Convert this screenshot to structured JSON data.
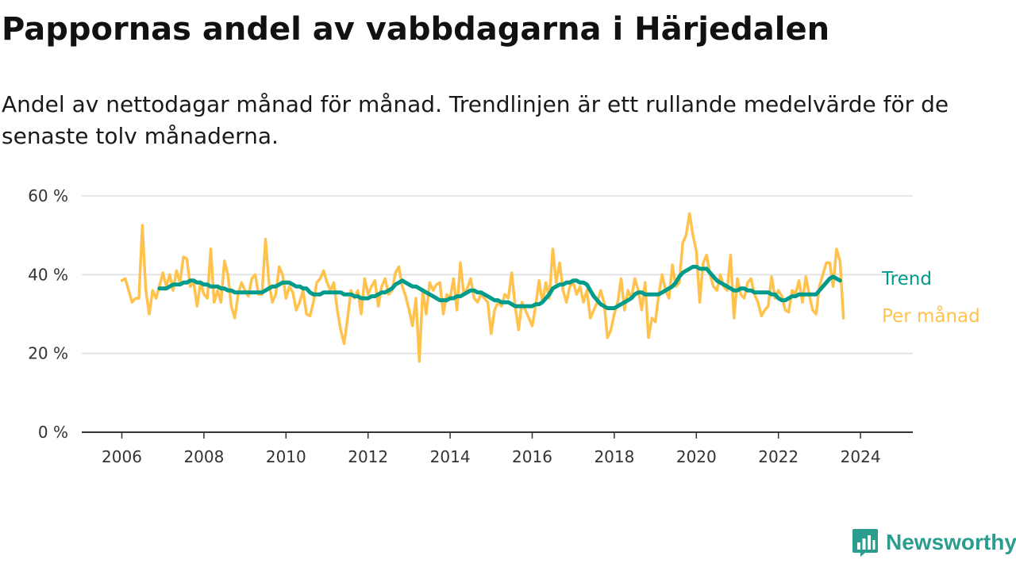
{
  "header": {
    "title": "Pappornas andel av vabbdagarna i Härjedalen",
    "subtitle": "Andel av nettodagar månad för månad. Trendlinjen är ett rullande medelvärde för de senaste tolv månaderna."
  },
  "brand": {
    "name": "Newsworthy"
  },
  "colors": {
    "monthly": "#ffc24d",
    "trend": "#009b8a",
    "grid": "#dddddd",
    "axis": "#333333",
    "brand": "#2a9d8f"
  },
  "chart_data": {
    "type": "line",
    "title": "Pappornas andel av vabbdagarna i Härjedalen",
    "xlabel": "",
    "ylabel": "",
    "x_start": "2006-01",
    "xlim": [
      2005.5,
      2025.25
    ],
    "ylim": [
      0,
      60
    ],
    "y_ticks": [
      0,
      20,
      40,
      60
    ],
    "y_tick_labels": [
      "0 %",
      "20 %",
      "40 %",
      "60 %"
    ],
    "x_ticks": [
      2006,
      2008,
      2010,
      2012,
      2014,
      2016,
      2018,
      2020,
      2022,
      2024
    ],
    "x_tick_labels": [
      "2006",
      "2008",
      "2010",
      "2012",
      "2014",
      "2016",
      "2018",
      "2020",
      "2022",
      "2024"
    ],
    "grid": true,
    "series": [
      {
        "name": "Per månad",
        "color": "#ffc24d",
        "values": [
          38.5,
          39.0,
          36.0,
          33.0,
          34.0,
          34.0,
          52.5,
          36.0,
          30.0,
          36.0,
          34.0,
          37.0,
          40.5,
          37.0,
          40.0,
          36.0,
          41.0,
          38.0,
          44.5,
          44.0,
          37.0,
          38.0,
          32.0,
          38.0,
          35.0,
          34.0,
          46.5,
          33.0,
          36.0,
          33.0,
          43.5,
          40.0,
          32.0,
          29.0,
          35.0,
          38.0,
          36.0,
          34.5,
          39.0,
          40.0,
          35.0,
          35.0,
          49.0,
          38.0,
          33.0,
          35.0,
          42.0,
          40.0,
          34.0,
          37.0,
          35.5,
          31.0,
          33.0,
          36.0,
          30.0,
          29.5,
          33.0,
          38.0,
          39.0,
          41.0,
          38.0,
          36.0,
          38.0,
          31.0,
          26.0,
          22.5,
          29.0,
          36.0,
          34.0,
          36.0,
          30.0,
          39.0,
          35.0,
          37.0,
          38.5,
          32.0,
          37.0,
          39.0,
          35.0,
          36.0,
          40.5,
          42.0,
          37.0,
          34.5,
          31.0,
          27.0,
          34.0,
          18.0,
          36.0,
          30.0,
          38.0,
          36.0,
          37.5,
          38.0,
          30.0,
          35.0,
          34.0,
          39.0,
          31.0,
          43.0,
          35.0,
          36.5,
          39.0,
          34.0,
          33.0,
          35.0,
          34.0,
          33.0,
          25.0,
          31.0,
          33.0,
          32.0,
          35.0,
          34.0,
          40.5,
          32.0,
          26.0,
          33.0,
          31.0,
          29.0,
          27.0,
          32.0,
          38.5,
          33.0,
          38.0,
          34.0,
          46.5,
          38.0,
          43.0,
          36.0,
          33.0,
          37.0,
          38.0,
          35.0,
          37.0,
          33.0,
          36.0,
          29.0,
          31.0,
          33.0,
          36.0,
          33.0,
          24.0,
          26.0,
          30.0,
          33.0,
          39.0,
          31.0,
          36.0,
          34.0,
          39.0,
          36.0,
          31.0,
          38.0,
          24.0,
          29.0,
          28.0,
          35.0,
          40.0,
          36.0,
          34.0,
          42.5,
          37.0,
          38.0,
          48.0,
          50.0,
          55.5,
          50.0,
          46.0,
          33.0,
          43.0,
          45.0,
          40.0,
          37.0,
          36.0,
          40.0,
          37.0,
          36.0,
          45.0,
          29.0,
          39.0,
          35.0,
          34.0,
          38.0,
          39.0,
          35.0,
          33.0,
          29.5,
          31.0,
          32.0,
          39.5,
          34.0,
          36.0,
          34.5,
          31.0,
          30.5,
          36.0,
          35.0,
          38.5,
          33.0,
          39.5,
          35.0,
          31.0,
          30.0,
          37.0,
          40.0,
          43.0,
          43.0,
          37.0,
          46.5,
          43.5,
          29.0
        ]
      },
      {
        "name": "Trend",
        "color": "#009b8a",
        "values": [
          null,
          null,
          null,
          null,
          null,
          null,
          null,
          null,
          null,
          null,
          null,
          36.5,
          36.5,
          36.5,
          37.0,
          37.5,
          37.5,
          37.5,
          38.0,
          38.0,
          38.5,
          38.5,
          38.0,
          38.0,
          37.5,
          37.5,
          37.0,
          37.0,
          37.0,
          36.5,
          36.5,
          36.0,
          36.0,
          35.5,
          35.5,
          35.5,
          35.5,
          35.5,
          35.5,
          35.5,
          35.5,
          35.5,
          36.0,
          36.5,
          37.0,
          37.0,
          37.5,
          38.0,
          38.0,
          38.0,
          37.5,
          37.0,
          37.0,
          36.5,
          36.5,
          35.5,
          35.0,
          35.0,
          35.0,
          35.5,
          35.5,
          35.5,
          35.5,
          35.5,
          35.5,
          35.0,
          35.0,
          35.0,
          34.5,
          34.5,
          34.0,
          34.0,
          34.0,
          34.5,
          34.5,
          35.0,
          35.5,
          35.5,
          36.0,
          36.5,
          37.5,
          38.0,
          38.5,
          38.0,
          37.5,
          37.0,
          37.0,
          36.5,
          36.0,
          35.5,
          35.0,
          34.5,
          34.0,
          33.5,
          33.5,
          33.5,
          34.0,
          34.0,
          34.5,
          34.5,
          35.0,
          35.5,
          36.0,
          36.0,
          35.5,
          35.5,
          35.0,
          34.5,
          34.0,
          33.5,
          33.5,
          33.0,
          33.0,
          33.0,
          32.5,
          32.0,
          32.0,
          32.0,
          32.0,
          32.0,
          32.0,
          32.5,
          32.5,
          33.0,
          34.0,
          35.0,
          36.5,
          37.0,
          37.5,
          37.5,
          38.0,
          38.0,
          38.5,
          38.5,
          38.0,
          38.0,
          37.5,
          36.0,
          34.5,
          33.5,
          32.5,
          32.0,
          31.5,
          31.5,
          31.5,
          32.0,
          32.5,
          33.0,
          33.5,
          34.0,
          35.0,
          35.5,
          35.5,
          35.0,
          35.0,
          35.0,
          35.0,
          35.0,
          35.5,
          36.0,
          36.5,
          37.0,
          38.0,
          39.5,
          40.5,
          41.0,
          41.5,
          42.0,
          42.0,
          41.5,
          41.5,
          41.5,
          40.5,
          39.5,
          38.5,
          38.0,
          37.5,
          37.0,
          36.5,
          36.0,
          36.0,
          36.5,
          36.5,
          36.0,
          36.0,
          35.5,
          35.5,
          35.5,
          35.5,
          35.5,
          35.0,
          35.0,
          34.0,
          33.5,
          33.5,
          34.0,
          34.5,
          34.5,
          35.0,
          35.0,
          35.0,
          35.0,
          35.0,
          35.0,
          36.0,
          37.0,
          38.0,
          39.0,
          39.5,
          39.0,
          38.5
        ]
      }
    ],
    "annotations": [
      "Trend",
      "Per månad"
    ]
  }
}
